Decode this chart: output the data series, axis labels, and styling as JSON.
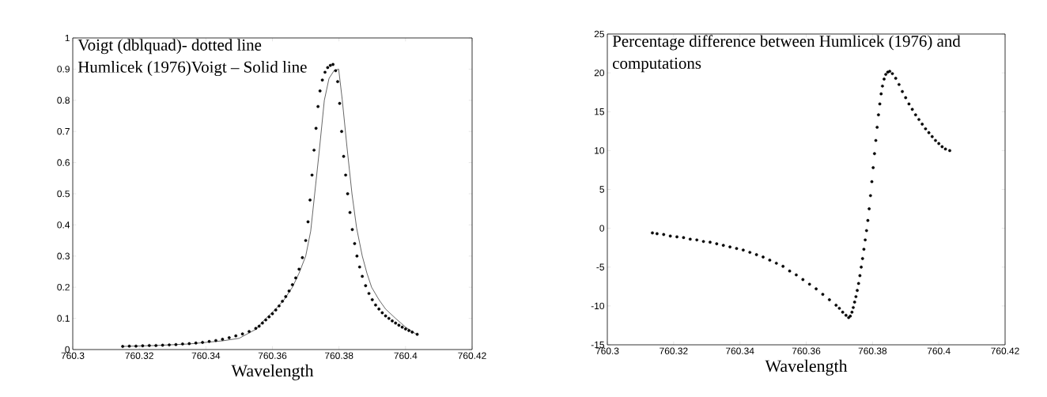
{
  "chart_data": [
    {
      "type": "line",
      "xlabel": "Wavelength",
      "xlim": [
        760.3,
        760.42
      ],
      "ylim": [
        0,
        1
      ],
      "xticks": [
        760.3,
        760.32,
        760.34,
        760.36,
        760.38,
        760.4,
        760.42
      ],
      "yticks": [
        0,
        0.1,
        0.2,
        0.3,
        0.4,
        0.5,
        0.6,
        0.7,
        0.8,
        0.9,
        1
      ],
      "annotations": [
        "Voigt (dblquad)- dotted line",
        "Humlicek (1976)Voigt – Solid line"
      ],
      "series": [
        {
          "type": "scatter",
          "marker": "circle",
          "color": "#000000",
          "x": [
            760.315,
            760.317,
            760.319,
            760.321,
            760.323,
            760.325,
            760.327,
            760.329,
            760.331,
            760.333,
            760.335,
            760.337,
            760.339,
            760.341,
            760.343,
            760.345,
            760.347,
            760.349,
            760.351,
            760.353,
            760.355,
            760.356,
            760.357,
            760.358,
            760.359,
            760.36,
            760.361,
            760.362,
            760.363,
            760.364,
            760.365,
            760.366,
            760.367,
            760.368,
            760.369,
            760.37,
            760.3707,
            760.3713,
            760.3719,
            760.3725,
            760.3731,
            760.3737,
            760.3743,
            760.375,
            760.3758,
            760.3766,
            760.3774,
            760.3782,
            760.379,
            760.3796,
            760.3802,
            760.3808,
            760.3814,
            760.382,
            760.3826,
            760.3833,
            760.384,
            760.3847,
            760.3854,
            760.3862,
            760.387,
            760.388,
            760.389,
            760.39,
            760.391,
            760.392,
            760.393,
            760.394,
            760.395,
            760.396,
            760.397,
            760.398,
            760.399,
            760.4,
            760.401,
            760.402,
            760.4035
          ],
          "values": [
            0.01,
            0.011,
            0.011,
            0.012,
            0.013,
            0.013,
            0.014,
            0.015,
            0.016,
            0.018,
            0.019,
            0.021,
            0.023,
            0.026,
            0.029,
            0.033,
            0.038,
            0.044,
            0.05,
            0.058,
            0.068,
            0.075,
            0.085,
            0.095,
            0.105,
            0.115,
            0.127,
            0.14,
            0.155,
            0.17,
            0.188,
            0.208,
            0.23,
            0.258,
            0.295,
            0.35,
            0.41,
            0.48,
            0.56,
            0.64,
            0.71,
            0.78,
            0.83,
            0.865,
            0.89,
            0.905,
            0.912,
            0.915,
            0.895,
            0.86,
            0.79,
            0.7,
            0.62,
            0.56,
            0.5,
            0.44,
            0.385,
            0.34,
            0.3,
            0.265,
            0.235,
            0.205,
            0.18,
            0.16,
            0.143,
            0.13,
            0.118,
            0.108,
            0.1,
            0.092,
            0.085,
            0.078,
            0.072,
            0.066,
            0.061,
            0.056,
            0.049
          ]
        },
        {
          "type": "line",
          "line_style": "solid",
          "color": "#000000",
          "x": [
            760.315,
            760.325,
            760.335,
            760.345,
            760.35,
            760.355,
            760.358,
            760.361,
            760.3635,
            760.366,
            760.368,
            760.37,
            760.3715,
            760.3727,
            760.374,
            760.3756,
            760.377,
            760.3785,
            760.3799,
            760.381,
            760.3824,
            760.3839,
            760.3853,
            760.387,
            760.3884,
            760.3898,
            760.392,
            760.394,
            760.397,
            760.4,
            760.4034
          ],
          "values": [
            0.01,
            0.013,
            0.018,
            0.028,
            0.036,
            0.065,
            0.1,
            0.13,
            0.16,
            0.2,
            0.245,
            0.3,
            0.38,
            0.5,
            0.63,
            0.8,
            0.87,
            0.895,
            0.9,
            0.8,
            0.65,
            0.5,
            0.39,
            0.3,
            0.245,
            0.2,
            0.16,
            0.13,
            0.1,
            0.072,
            0.048
          ]
        }
      ]
    },
    {
      "type": "scatter",
      "marker": "circle",
      "xlabel": "Wavelength",
      "xlim": [
        760.3,
        760.42
      ],
      "ylim": [
        -15,
        25
      ],
      "xticks": [
        760.3,
        760.32,
        760.34,
        760.36,
        760.38,
        760.4,
        760.42
      ],
      "yticks": [
        -15,
        -10,
        -5,
        0,
        5,
        10,
        15,
        20,
        25
      ],
      "annotations": [
        "Percentage difference between Humlicek (1976) and computations"
      ],
      "series": [
        {
          "color": "#000000",
          "x": [
            760.3136,
            760.315,
            760.317,
            760.319,
            760.321,
            760.323,
            760.325,
            760.327,
            760.329,
            760.331,
            760.333,
            760.335,
            760.337,
            760.339,
            760.341,
            760.343,
            760.345,
            760.347,
            760.349,
            760.351,
            760.353,
            760.355,
            760.357,
            760.359,
            760.361,
            760.363,
            760.365,
            760.367,
            760.369,
            760.37,
            760.371,
            760.372,
            760.3728,
            760.3733,
            760.3738,
            760.3742,
            760.3746,
            760.375,
            760.3754,
            760.3758,
            760.3762,
            760.3766,
            760.377,
            760.3774,
            760.3778,
            760.3782,
            760.3786,
            760.379,
            760.3794,
            760.3798,
            760.3802,
            760.3806,
            760.381,
            760.3814,
            760.3818,
            760.3822,
            760.3826,
            760.383,
            760.3835,
            760.384,
            760.3846,
            760.3852,
            760.386,
            760.387,
            760.388,
            760.389,
            760.39,
            760.391,
            760.392,
            760.393,
            760.394,
            760.395,
            760.396,
            760.397,
            760.398,
            760.399,
            760.4,
            760.401,
            760.402,
            760.4033
          ],
          "values": [
            -0.6,
            -0.7,
            -0.8,
            -1.0,
            -1.1,
            -1.2,
            -1.4,
            -1.5,
            -1.7,
            -1.8,
            -2.0,
            -2.2,
            -2.4,
            -2.6,
            -2.8,
            -3.1,
            -3.4,
            -3.7,
            -4.1,
            -4.5,
            -4.9,
            -5.5,
            -6.0,
            -6.6,
            -7.2,
            -7.8,
            -8.5,
            -9.2,
            -9.9,
            -10.3,
            -10.8,
            -11.2,
            -11.5,
            -11.3,
            -10.8,
            -10.2,
            -9.5,
            -8.8,
            -8.0,
            -7.1,
            -6.1,
            -5.0,
            -3.9,
            -2.7,
            -1.5,
            -0.3,
            1.0,
            2.5,
            4.2,
            6.0,
            7.8,
            9.6,
            11.3,
            13.0,
            14.6,
            16.0,
            17.3,
            18.3,
            19.2,
            19.8,
            20.1,
            20.2,
            19.9,
            19.3,
            18.5,
            17.6,
            16.8,
            16.0,
            15.3,
            14.6,
            14.0,
            13.4,
            12.8,
            12.3,
            11.8,
            11.3,
            10.9,
            10.5,
            10.2,
            10.0
          ]
        }
      ]
    }
  ]
}
